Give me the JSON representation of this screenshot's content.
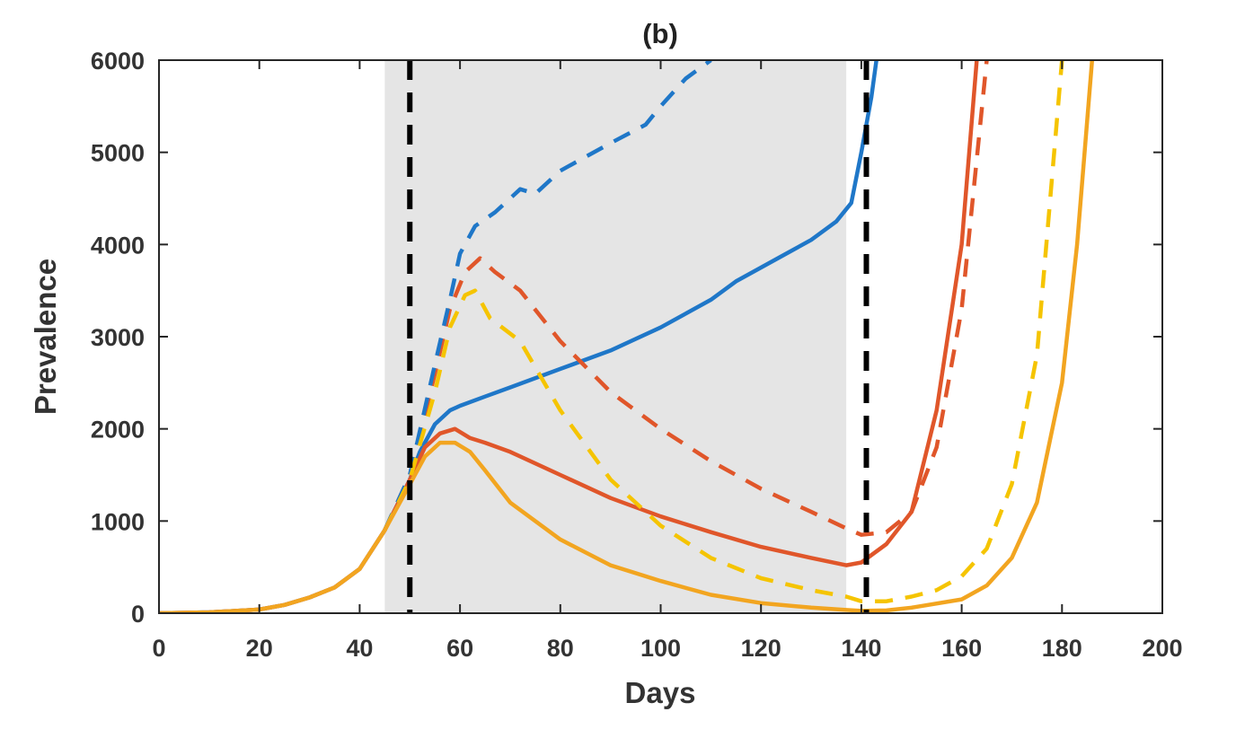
{
  "chart_data": {
    "type": "line",
    "title": "(b)",
    "xlabel": "Days",
    "ylabel": "Prevalence",
    "xlim": [
      0,
      200
    ],
    "ylim": [
      0,
      6000
    ],
    "xticks": [
      "0",
      "20",
      "40",
      "60",
      "80",
      "100",
      "120",
      "140",
      "160",
      "180",
      "200"
    ],
    "yticks": [
      "0",
      "1000",
      "2000",
      "3000",
      "4000",
      "5000",
      "6000"
    ],
    "grid": false,
    "legend": "none",
    "shaded_region": {
      "x_start": 45,
      "x_end": 137,
      "color": "#e5e5e5"
    },
    "vertical_lines": [
      {
        "x": 50,
        "color": "#000000",
        "style": "dashed"
      },
      {
        "x": 141,
        "color": "#000000",
        "style": "dashed"
      }
    ],
    "series": [
      {
        "color": "#1f77c8",
        "style": "solid",
        "points": [
          [
            0,
            0
          ],
          [
            10,
            10
          ],
          [
            20,
            40
          ],
          [
            25,
            90
          ],
          [
            30,
            170
          ],
          [
            35,
            280
          ],
          [
            40,
            480
          ],
          [
            45,
            900
          ],
          [
            50,
            1450
          ],
          [
            52,
            1750
          ],
          [
            55,
            2050
          ],
          [
            58,
            2200
          ],
          [
            60,
            2250
          ],
          [
            65,
            2350
          ],
          [
            70,
            2450
          ],
          [
            80,
            2650
          ],
          [
            90,
            2850
          ],
          [
            100,
            3100
          ],
          [
            110,
            3400
          ],
          [
            115,
            3600
          ],
          [
            120,
            3750
          ],
          [
            125,
            3900
          ],
          [
            130,
            4050
          ],
          [
            135,
            4250
          ],
          [
            138,
            4450
          ],
          [
            140,
            5000
          ],
          [
            142,
            5600
          ],
          [
            143,
            6000
          ]
        ]
      },
      {
        "color": "#e0562a",
        "style": "solid",
        "points": [
          [
            0,
            0
          ],
          [
            10,
            10
          ],
          [
            20,
            40
          ],
          [
            25,
            90
          ],
          [
            30,
            170
          ],
          [
            35,
            280
          ],
          [
            40,
            480
          ],
          [
            45,
            900
          ],
          [
            50,
            1450
          ],
          [
            53,
            1800
          ],
          [
            56,
            1950
          ],
          [
            59,
            2000
          ],
          [
            62,
            1900
          ],
          [
            65,
            1850
          ],
          [
            70,
            1750
          ],
          [
            80,
            1500
          ],
          [
            90,
            1250
          ],
          [
            100,
            1050
          ],
          [
            110,
            880
          ],
          [
            120,
            720
          ],
          [
            130,
            600
          ],
          [
            137,
            520
          ],
          [
            140,
            550
          ],
          [
            145,
            750
          ],
          [
            150,
            1100
          ],
          [
            155,
            2200
          ],
          [
            160,
            4000
          ],
          [
            163,
            6000
          ]
        ]
      },
      {
        "color": "#e0562a",
        "style": "dashed",
        "points": [
          [
            45,
            900
          ],
          [
            50,
            1500
          ],
          [
            55,
            2600
          ],
          [
            58,
            3300
          ],
          [
            61,
            3700
          ],
          [
            64,
            3850
          ],
          [
            67,
            3700
          ],
          [
            72,
            3500
          ],
          [
            80,
            2950
          ],
          [
            90,
            2400
          ],
          [
            100,
            2000
          ],
          [
            110,
            1650
          ],
          [
            120,
            1350
          ],
          [
            130,
            1100
          ],
          [
            137,
            920
          ],
          [
            140,
            850
          ],
          [
            145,
            880
          ],
          [
            150,
            1100
          ],
          [
            155,
            1800
          ],
          [
            160,
            3300
          ],
          [
            165,
            6000
          ]
        ]
      },
      {
        "color": "#1f77c8",
        "style": "dashed",
        "points": [
          [
            45,
            900
          ],
          [
            50,
            1500
          ],
          [
            55,
            2700
          ],
          [
            58,
            3400
          ],
          [
            60,
            3900
          ],
          [
            63,
            4200
          ],
          [
            67,
            4350
          ],
          [
            72,
            4600
          ],
          [
            75,
            4550
          ],
          [
            80,
            4800
          ],
          [
            90,
            5100
          ],
          [
            97,
            5300
          ],
          [
            100,
            5500
          ],
          [
            105,
            5800
          ],
          [
            110,
            6000
          ]
        ]
      },
      {
        "color": "#f5c400",
        "style": "dashed",
        "points": [
          [
            45,
            900
          ],
          [
            50,
            1450
          ],
          [
            55,
            2400
          ],
          [
            58,
            3100
          ],
          [
            61,
            3450
          ],
          [
            63,
            3500
          ],
          [
            66,
            3200
          ],
          [
            72,
            2950
          ],
          [
            80,
            2200
          ],
          [
            90,
            1450
          ],
          [
            100,
            950
          ],
          [
            110,
            600
          ],
          [
            120,
            380
          ],
          [
            130,
            250
          ],
          [
            137,
            180
          ],
          [
            140,
            130
          ],
          [
            145,
            130
          ],
          [
            150,
            180
          ],
          [
            155,
            250
          ],
          [
            160,
            400
          ],
          [
            165,
            700
          ],
          [
            170,
            1400
          ],
          [
            175,
            2800
          ],
          [
            180,
            6000
          ]
        ]
      },
      {
        "color": "#f2a520",
        "style": "solid",
        "points": [
          [
            0,
            0
          ],
          [
            10,
            10
          ],
          [
            20,
            40
          ],
          [
            25,
            90
          ],
          [
            30,
            170
          ],
          [
            35,
            280
          ],
          [
            40,
            480
          ],
          [
            45,
            900
          ],
          [
            50,
            1400
          ],
          [
            53,
            1700
          ],
          [
            56,
            1850
          ],
          [
            59,
            1850
          ],
          [
            62,
            1750
          ],
          [
            65,
            1550
          ],
          [
            70,
            1200
          ],
          [
            80,
            800
          ],
          [
            90,
            520
          ],
          [
            100,
            350
          ],
          [
            110,
            200
          ],
          [
            120,
            110
          ],
          [
            130,
            60
          ],
          [
            137,
            35
          ],
          [
            140,
            25
          ],
          [
            145,
            30
          ],
          [
            150,
            60
          ],
          [
            160,
            150
          ],
          [
            165,
            300
          ],
          [
            170,
            600
          ],
          [
            175,
            1200
          ],
          [
            180,
            2500
          ],
          [
            183,
            4000
          ],
          [
            186,
            6000
          ]
        ]
      }
    ]
  }
}
